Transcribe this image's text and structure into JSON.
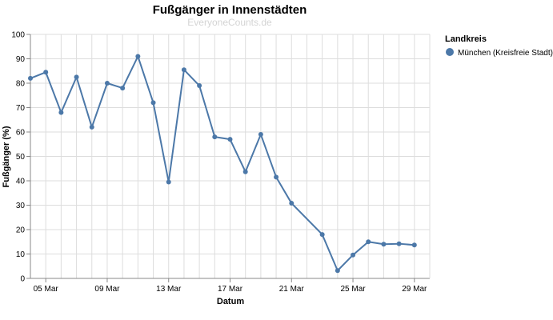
{
  "chart_data": {
    "type": "line",
    "title": "Fußgänger in Innenstädten",
    "subtitle": "EveryoneCounts.de",
    "xlabel": "Datum",
    "ylabel": "Fußgänger (%)",
    "ylim": [
      0,
      100
    ],
    "yticks": [
      "0",
      "10",
      "20",
      "30",
      "40",
      "50",
      "60",
      "70",
      "80",
      "90",
      "100"
    ],
    "xlim": [
      "2020-03-04",
      "2020-03-30"
    ],
    "xticks": [
      {
        "date": "2020-03-05",
        "label": "05 Mar"
      },
      {
        "date": "2020-03-09",
        "label": "09 Mar"
      },
      {
        "date": "2020-03-13",
        "label": "13 Mar"
      },
      {
        "date": "2020-03-17",
        "label": "17 Mar"
      },
      {
        "date": "2020-03-21",
        "label": "21 Mar"
      },
      {
        "date": "2020-03-25",
        "label": "25 Mar"
      },
      {
        "date": "2020-03-29",
        "label": "29 Mar"
      }
    ],
    "grid": true,
    "legend_title": "Landkreis",
    "legend_position": "right",
    "series": [
      {
        "name": "München (Kreisfreie Stadt)",
        "color": "#4c78a8",
        "x": [
          "2020-03-04",
          "2020-03-05",
          "2020-03-06",
          "2020-03-07",
          "2020-03-08",
          "2020-03-09",
          "2020-03-10",
          "2020-03-11",
          "2020-03-12",
          "2020-03-13",
          "2020-03-14",
          "2020-03-15",
          "2020-03-16",
          "2020-03-17",
          "2020-03-18",
          "2020-03-19",
          "2020-03-20",
          "2020-03-21",
          "2020-03-23",
          "2020-03-24",
          "2020-03-25",
          "2020-03-26",
          "2020-03-27",
          "2020-03-28",
          "2020-03-29"
        ],
        "values": [
          82,
          84.5,
          68,
          82.5,
          62,
          80,
          78,
          91,
          72,
          39.5,
          85.5,
          79,
          58,
          57,
          43.7,
          59,
          41.5,
          30.8,
          18,
          3.2,
          9.6,
          15,
          14,
          14.2,
          13.7
        ]
      }
    ]
  }
}
